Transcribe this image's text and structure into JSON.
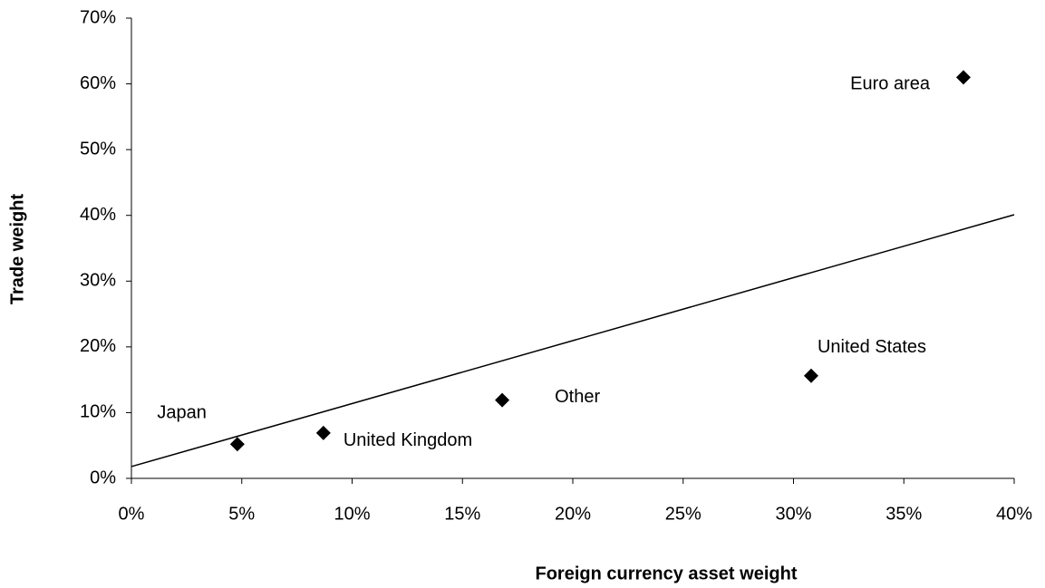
{
  "chart_data": {
    "type": "scatter",
    "x_label": "Foreign currency asset weight",
    "y_label": "Trade weight",
    "labels": [
      "Japan",
      "United Kingdom",
      "Other",
      "United States",
      "Euro area"
    ],
    "x": [
      4.8,
      8.7,
      16.8,
      30.8,
      37.7
    ],
    "values": [
      5.2,
      6.9,
      11.9,
      15.6,
      61.0
    ],
    "color": "#000000",
    "trendline": {
      "x": [
        0,
        40
      ],
      "values": [
        1.8,
        40.1
      ]
    },
    "xlim": [
      0,
      40
    ],
    "ylim": [
      0,
      70
    ],
    "xticks": [
      {
        "value": 0,
        "label": "0%"
      },
      {
        "value": 5,
        "label": "5%"
      },
      {
        "value": 10,
        "label": "10%"
      },
      {
        "value": 15,
        "label": "15%"
      },
      {
        "value": 20,
        "label": "20%"
      },
      {
        "value": 25,
        "label": "25%"
      },
      {
        "value": 30,
        "label": "30%"
      },
      {
        "value": 35,
        "label": "35%"
      },
      {
        "value": 40,
        "label": "40%"
      }
    ],
    "yticks": [
      {
        "value": 0,
        "label": "0%"
      },
      {
        "value": 10,
        "label": "10%"
      },
      {
        "value": 20,
        "label": "20%"
      },
      {
        "value": 30,
        "label": "30%"
      },
      {
        "value": 40,
        "label": "40%"
      },
      {
        "value": 50,
        "label": "50%"
      },
      {
        "value": 60,
        "label": "60%"
      },
      {
        "value": 70,
        "label": "70%"
      }
    ],
    "grid": false
  }
}
